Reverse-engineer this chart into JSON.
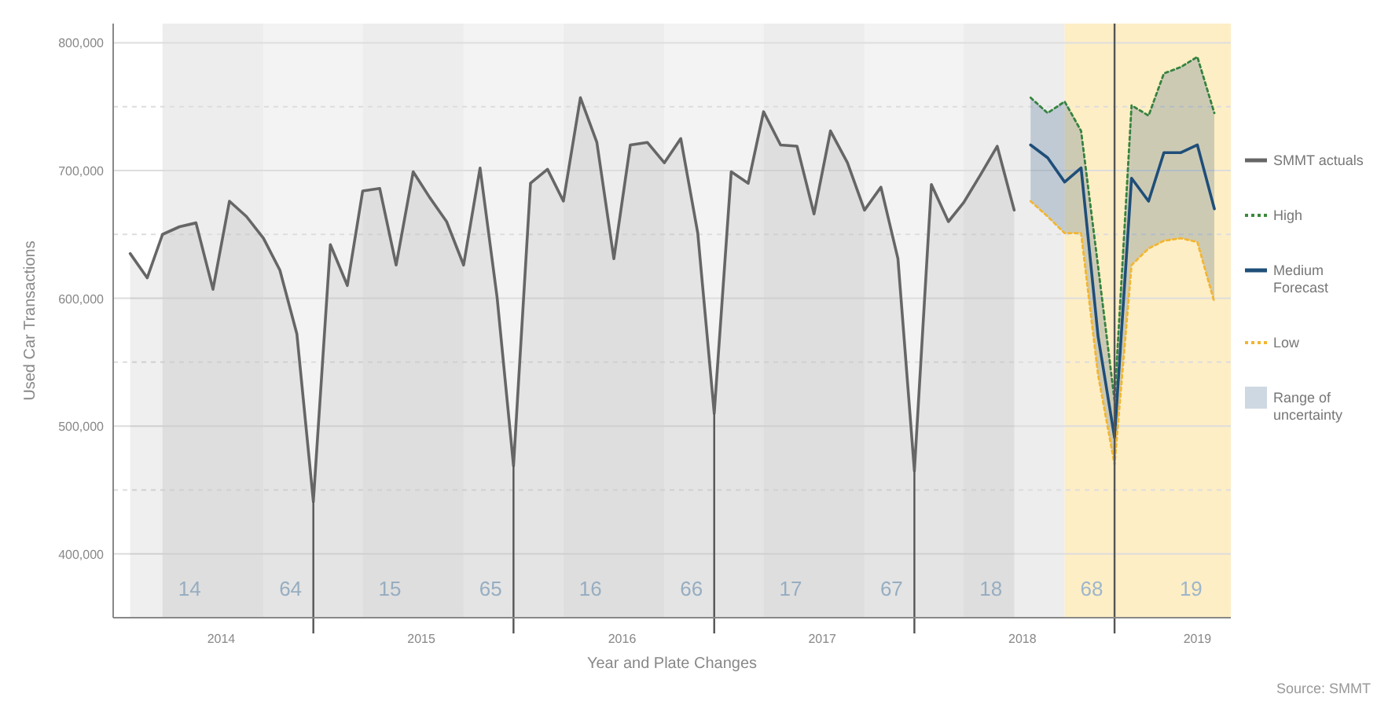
{
  "chart_data": {
    "type": "line",
    "xlabel": "Year and Plate Changes",
    "ylabel": "Used Car Transactions",
    "annotations": [
      "Range of uncertainty",
      "Source: SMMT"
    ],
    "xlim": [
      "2013-12",
      "2019-07"
    ],
    "ylim": [
      350000,
      815000
    ],
    "xticks": [
      {
        "value": "2014-06-16",
        "label": "2014"
      },
      {
        "value": "2015-06-16",
        "label": "2015"
      },
      {
        "value": "2016-06-16",
        "label": "2016"
      },
      {
        "value": "2017-06-16",
        "label": "2017"
      },
      {
        "value": "2018-06-16",
        "label": "2018"
      },
      {
        "value": "2019-05",
        "label": "2019"
      }
    ],
    "yticks": [
      {
        "value": 400000,
        "label": "400,000"
      },
      {
        "value": 450000,
        "label": null
      },
      {
        "value": 500000,
        "label": "500,000"
      },
      {
        "value": 550000,
        "label": null
      },
      {
        "value": 600000,
        "label": "600,000"
      },
      {
        "value": 650000,
        "label": null
      },
      {
        "value": 700000,
        "label": "700,000"
      },
      {
        "value": 750000,
        "label": null
      },
      {
        "value": 800000,
        "label": "800,000"
      }
    ],
    "grid": "y",
    "legend": "right",
    "ref_lines": [
      {
        "axis": "x",
        "value": "2014-12",
        "color": "#555555"
      },
      {
        "axis": "x",
        "value": "2015-12",
        "color": "#555555"
      },
      {
        "axis": "x",
        "value": "2016-12",
        "color": "#555555"
      },
      {
        "axis": "x",
        "value": "2017-12",
        "color": "#555555"
      },
      {
        "axis": "x",
        "value": "2018-12",
        "color": "#555555"
      }
    ],
    "bands": [
      {
        "axis": "x",
        "from": "2014-03",
        "to": "2014-09",
        "label": "14",
        "color": "#e6e6e6"
      },
      {
        "axis": "x",
        "from": "2014-09",
        "to": "2015-03",
        "label": "64",
        "color": "#eeeeee"
      },
      {
        "axis": "x",
        "from": "2015-03",
        "to": "2015-09",
        "label": "15",
        "color": "#e6e6e6"
      },
      {
        "axis": "x",
        "from": "2015-09",
        "to": "2016-03",
        "label": "65",
        "color": "#eeeeee"
      },
      {
        "axis": "x",
        "from": "2016-03",
        "to": "2016-09",
        "label": "16",
        "color": "#e6e6e6"
      },
      {
        "axis": "x",
        "from": "2016-09",
        "to": "2017-03",
        "label": "66",
        "color": "#eeeeee"
      },
      {
        "axis": "x",
        "from": "2017-03",
        "to": "2017-09",
        "label": "17",
        "color": "#e6e6e6"
      },
      {
        "axis": "x",
        "from": "2017-09",
        "to": "2018-03",
        "label": "67",
        "color": "#eeeeee"
      },
      {
        "axis": "x",
        "from": "2018-03",
        "to": "2018-09",
        "label": "18",
        "color": "#e6e6e6"
      },
      {
        "axis": "x",
        "from": "2018-09",
        "to": "2019-03",
        "label": "68",
        "color": "#fde7ad"
      },
      {
        "axis": "x",
        "from": "2019-03",
        "to": "2019-07",
        "label": "19",
        "color": "#fde7ad"
      }
    ],
    "series": [
      {
        "name": "SMMT actuals",
        "type": "area",
        "color": "#666666",
        "x": [
          "2014-01",
          "2014-02",
          "2014-03",
          "2014-04",
          "2014-05",
          "2014-06",
          "2014-07",
          "2014-08",
          "2014-09",
          "2014-10",
          "2014-11",
          "2014-12",
          "2015-01",
          "2015-02",
          "2015-03",
          "2015-04",
          "2015-05",
          "2015-06",
          "2015-07",
          "2015-08",
          "2015-09",
          "2015-10",
          "2015-11",
          "2015-12",
          "2016-01",
          "2016-02",
          "2016-03",
          "2016-04",
          "2016-05",
          "2016-06",
          "2016-07",
          "2016-08",
          "2016-09",
          "2016-10",
          "2016-11",
          "2016-12",
          "2017-01",
          "2017-02",
          "2017-03",
          "2017-04",
          "2017-05",
          "2017-06",
          "2017-07",
          "2017-08",
          "2017-09",
          "2017-10",
          "2017-11",
          "2017-12",
          "2018-01",
          "2018-02",
          "2018-03",
          "2018-04",
          "2018-05",
          "2018-06"
        ],
        "values": [
          635000,
          616000,
          650000,
          656000,
          659000,
          607000,
          676000,
          664000,
          647000,
          622000,
          572000,
          441000,
          642000,
          610000,
          684000,
          686000,
          626000,
          699000,
          679000,
          660000,
          626000,
          702000,
          601000,
          469000,
          690000,
          701000,
          676000,
          757000,
          722000,
          631000,
          720000,
          722000,
          706000,
          725000,
          651000,
          510000,
          699000,
          690000,
          746000,
          720000,
          719000,
          666000,
          731000,
          706000,
          669000,
          687000,
          631000,
          465000,
          689000,
          660000,
          675000,
          697000,
          719000,
          669000
        ]
      },
      {
        "name": "High",
        "color": "#3a8a3a",
        "line_style": "dotted",
        "x": [
          "2018-07",
          "2018-08",
          "2018-09",
          "2018-10",
          "2018-11",
          "2018-12",
          "2019-01",
          "2019-02",
          "2019-03",
          "2019-04",
          "2019-05",
          "2019-06"
        ],
        "values": [
          757000,
          745000,
          754000,
          731000,
          625000,
          520000,
          751000,
          743000,
          776000,
          781000,
          789000,
          745000
        ]
      },
      {
        "name": "Medium Forecast",
        "color": "#1f4e79",
        "x": [
          "2018-07",
          "2018-08",
          "2018-09",
          "2018-10",
          "2018-11",
          "2018-12",
          "2019-01",
          "2019-02",
          "2019-03",
          "2019-04",
          "2019-05",
          "2019-06"
        ],
        "values": [
          720000,
          710000,
          691000,
          702000,
          570000,
          491000,
          694000,
          676000,
          714000,
          714000,
          720000,
          670000
        ],
        "lower": [
          676000,
          664000,
          651000,
          651000,
          540000,
          470000,
          626000,
          639000,
          645000,
          647000,
          644000,
          597000
        ],
        "upper": [
          757000,
          745000,
          754000,
          731000,
          625000,
          520000,
          751000,
          743000,
          776000,
          781000,
          789000,
          745000
        ]
      },
      {
        "name": "Low",
        "color": "#f2b632",
        "line_style": "dotted",
        "x": [
          "2018-07",
          "2018-08",
          "2018-09",
          "2018-10",
          "2018-11",
          "2018-12",
          "2019-01",
          "2019-02",
          "2019-03",
          "2019-04",
          "2019-05",
          "2019-06"
        ],
        "values": [
          676000,
          664000,
          651000,
          651000,
          540000,
          470000,
          626000,
          639000,
          645000,
          647000,
          644000,
          597000
        ]
      }
    ]
  }
}
